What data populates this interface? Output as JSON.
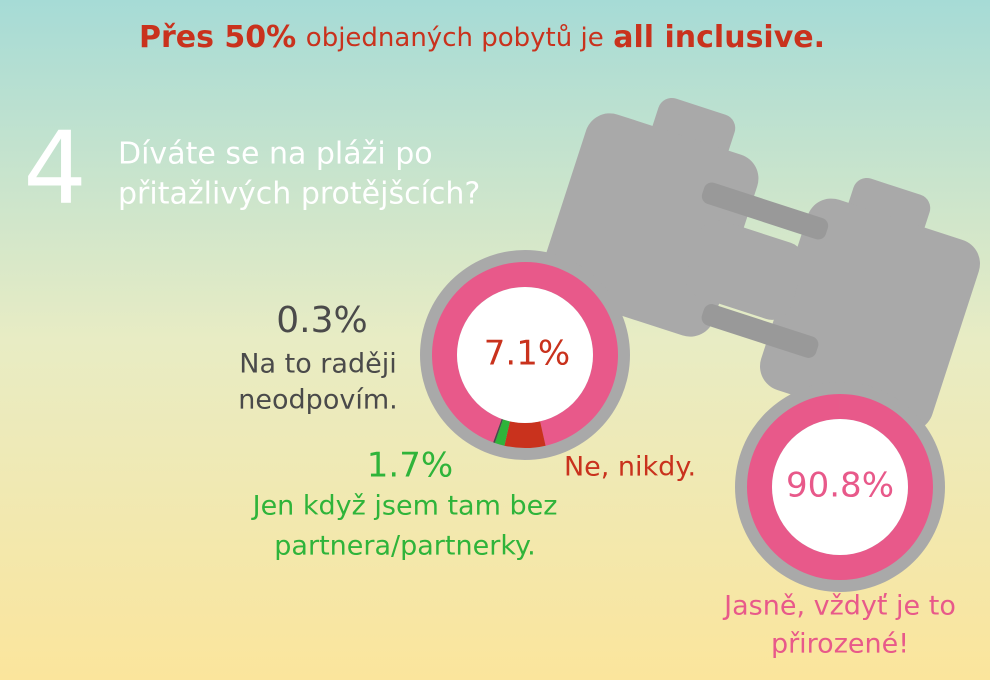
{
  "chart_data": {
    "type": "donut",
    "title": [
      "Přes 50%",
      "objednaných pobytů je",
      "all inclusive."
    ],
    "question_number": "4",
    "question": [
      "Díváte se na pláži po",
      "přitažlivých protějšcích?"
    ],
    "categories": [
      [
        "Jasně, vždyť je to",
        "přirozené!"
      ],
      [
        "Ne, nikdy."
      ],
      [
        "Jen když jsem tam bez",
        "partnera/partnerky."
      ],
      [
        "Na to raději",
        "neodpovím."
      ]
    ],
    "values": [
      90.8,
      7.1,
      1.7,
      0.3
    ],
    "value_labels": [
      "90.8%",
      "7.1%",
      "1.7%",
      "0.3%"
    ],
    "colors": [
      "#e8598a",
      "#c9321d",
      "#2fb43a",
      "#4a4a4a"
    ]
  }
}
